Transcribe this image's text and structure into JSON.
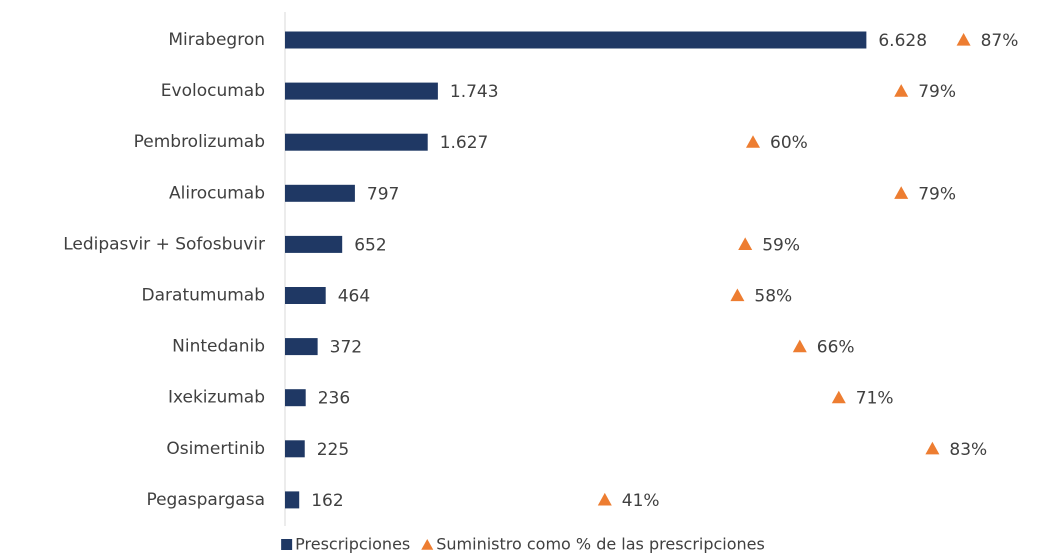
{
  "chart_data": {
    "type": "bar",
    "categories": [
      "Mirabegron",
      "Evolocumab",
      "Pembrolizumab",
      "Alirocumab",
      "Ledipasvir + Sofosbuvir",
      "Daratumumab",
      "Nintedanib",
      "Ixekizumab",
      "Osimertinib",
      "Pegaspargasa"
    ],
    "series": [
      {
        "name": "Prescripciones",
        "color": "#1f3864",
        "type": "bar",
        "values": [
          6628,
          1743,
          1627,
          797,
          652,
          464,
          372,
          236,
          225,
          162
        ],
        "value_labels": [
          "6.628",
          "1.743",
          "1.627",
          "797",
          "652",
          "464",
          "372",
          "236",
          "225",
          "162"
        ]
      },
      {
        "name": "Suministro como % de las prescripciones",
        "color": "#ed7d31",
        "type": "scatter",
        "axis": "x2",
        "values": [
          87,
          79,
          60,
          79,
          59,
          58,
          66,
          71,
          83,
          41
        ],
        "value_labels": [
          "87%",
          "79%",
          "60%",
          "79%",
          "59%",
          "58%",
          "66%",
          "71%",
          "83%",
          "41%"
        ]
      }
    ],
    "xlim": [
      0,
      7000
    ],
    "x2lim": [
      0,
      100
    ],
    "legend": "bottom"
  }
}
